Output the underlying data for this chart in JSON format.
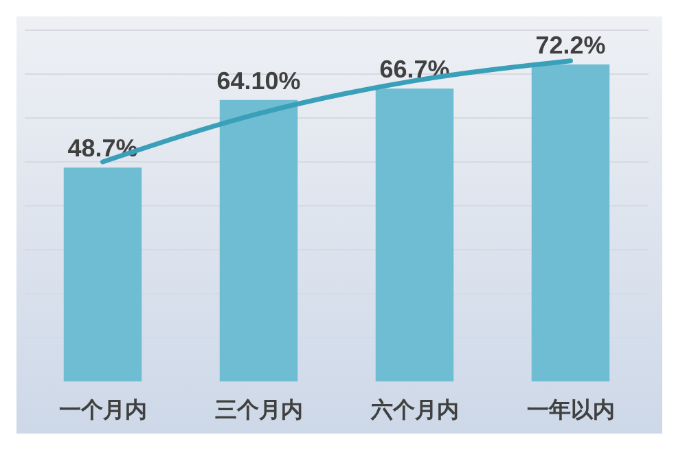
{
  "chart_data": {
    "type": "bar",
    "categories": [
      "一个月内",
      "三个月内",
      "六个月内",
      "一年以内"
    ],
    "series": [
      {
        "color": "#6fbdd2",
        "values": [
          48.7,
          64.1,
          66.7,
          72.2
        ],
        "value_labels": [
          "48.7%",
          "64.10%",
          "66.7%",
          "72.2%"
        ]
      },
      {
        "type": "line",
        "color": "#3a9fb8",
        "values": [
          50,
          61,
          68.5,
          73
        ],
        "marker": "none"
      }
    ],
    "ylim": [
      0,
      80
    ],
    "yticks": [
      {
        "value": 0,
        "label": null
      },
      {
        "value": 10,
        "label": null
      },
      {
        "value": 20,
        "label": null
      },
      {
        "value": 30,
        "label": null
      },
      {
        "value": 40,
        "label": null
      },
      {
        "value": 50,
        "label": null
      },
      {
        "value": 60,
        "label": null
      },
      {
        "value": 70,
        "label": null
      },
      {
        "value": 80,
        "label": null
      }
    ],
    "grid": "y",
    "tick_labels": "x"
  }
}
